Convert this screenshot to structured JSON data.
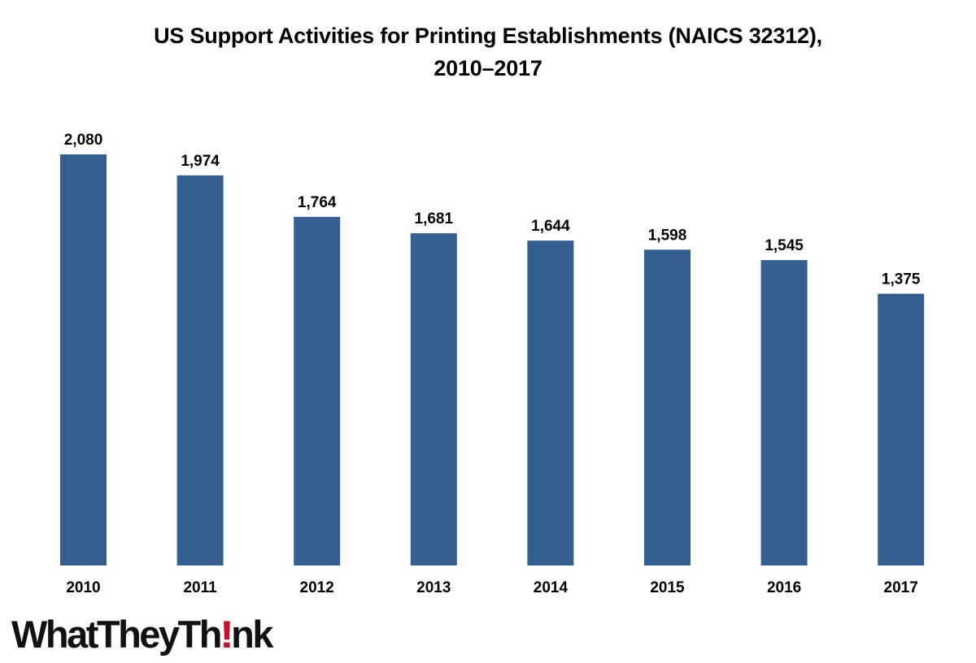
{
  "title_line1": "US Support Activities for Printing Establishments (NAICS 32312),",
  "title_line2": "2010–2017",
  "logo": {
    "text_before": "WhatTheyTh",
    "text_bang": "!",
    "text_after": "nk",
    "accent_color": "#c8102e"
  },
  "chart_data": {
    "type": "bar",
    "title": "US Support Activities for Printing Establishments (NAICS 32312), 2010–2017",
    "xlabel": "",
    "ylabel": "",
    "categories": [
      "2010",
      "2011",
      "2012",
      "2013",
      "2014",
      "2015",
      "2016",
      "2017"
    ],
    "values": [
      2080,
      1974,
      1764,
      1681,
      1644,
      1598,
      1545,
      1375
    ],
    "value_labels": [
      "2,080",
      "1,974",
      "1,764",
      "1,681",
      "1,644",
      "1,598",
      "1,545",
      "1,375"
    ],
    "ylim": [
      0,
      2080
    ],
    "grid": false,
    "legend": "none",
    "bar_color": "#365f91"
  }
}
